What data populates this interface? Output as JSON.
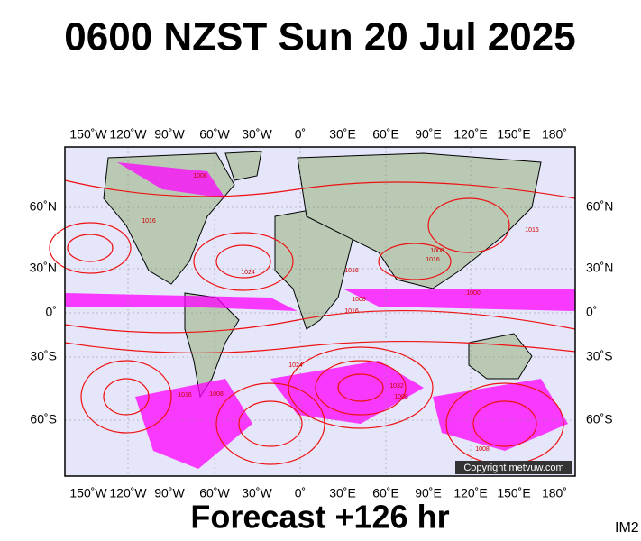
{
  "title": "0600 NZST Sun 20 Jul 2025",
  "longitude_labels": [
    "150˚W",
    "120˚W",
    "90˚W",
    "60˚W",
    "30˚W",
    "0˚",
    "30˚E",
    "60˚E",
    "90˚E",
    "120˚E",
    "150˚E",
    "180˚"
  ],
  "latitude_labels": [
    "60˚N",
    "30˚N",
    "0˚",
    "30˚S",
    "60˚S"
  ],
  "isobar_labels": [
    "1008",
    "1016",
    "1024",
    "1016",
    "1008",
    "1016",
    "1008",
    "1016",
    "1024",
    "1032",
    "1008",
    "1016",
    "1008",
    "1016",
    "1000",
    "1008"
  ],
  "copyright": "Copyright metvuw.com",
  "footer": "Forecast +126 hr",
  "image_id": "IM2"
}
